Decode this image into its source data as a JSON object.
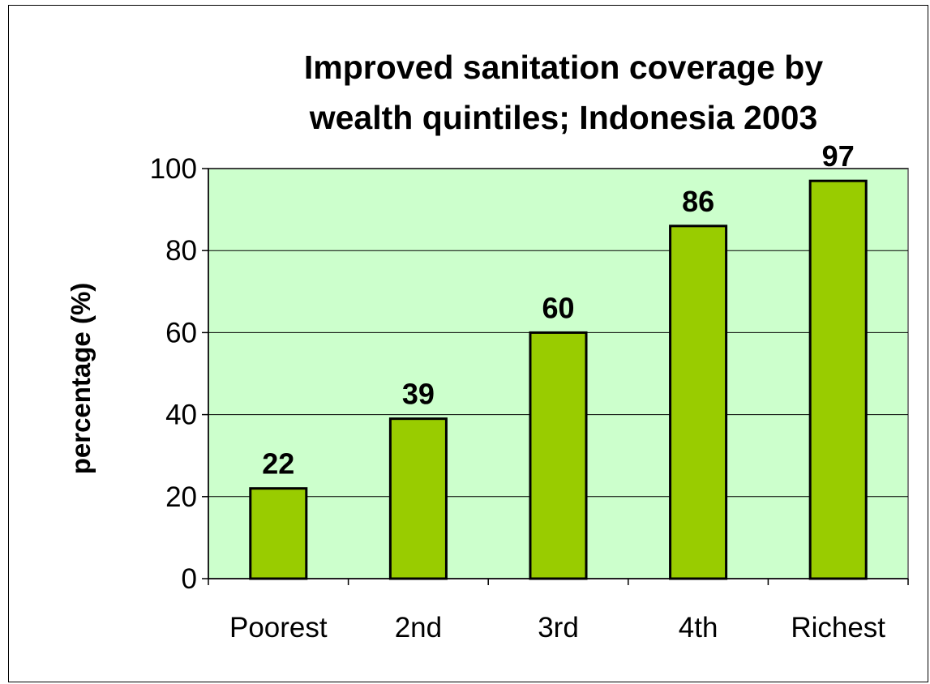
{
  "colors": {
    "plot_background": "#ccffcc",
    "bar_fill": "#99cc00",
    "bar_stroke": "#000000",
    "gridline": "#000000",
    "plot_border": "#808080"
  },
  "chart_data": {
    "type": "bar",
    "title_lines": [
      "Improved sanitation coverage by",
      "wealth quintiles; Indonesia 2003"
    ],
    "xlabel": "",
    "ylabel": "percentage (%)",
    "categories": [
      "Poorest",
      "2nd",
      "3rd",
      "4th",
      "Richest"
    ],
    "values": [
      22,
      39,
      60,
      86,
      97
    ],
    "data_labels": [
      "22",
      "39",
      "60",
      "86",
      "97"
    ],
    "ylim": [
      0,
      100
    ],
    "yticks": [
      0,
      20,
      40,
      60,
      80,
      100
    ],
    "ytick_labels": [
      "0",
      "20",
      "40",
      "60",
      "80",
      "100"
    ],
    "grid": true,
    "legend": "none"
  }
}
